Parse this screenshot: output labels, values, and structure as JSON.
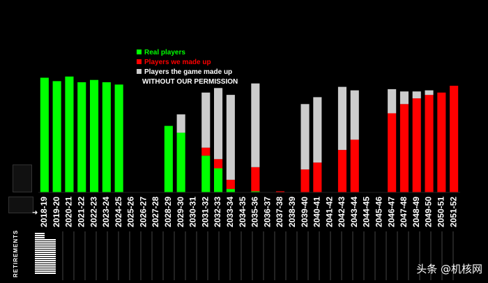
{
  "chart_data": {
    "type": "bar",
    "stacked": true,
    "categories": [
      "2018-19",
      "2019-20",
      "2020-21",
      "2021-22",
      "2022-23",
      "2023-24",
      "2024-25",
      "2025-26",
      "2026-27",
      "2027-28",
      "2028-29",
      "2029-30",
      "2030-31",
      "2031-32",
      "2032-33",
      "2033-34",
      "2034-35",
      "2035-36",
      "2036-37",
      "2037-38",
      "2038-39",
      "2039-40",
      "2040-41",
      "2041-42",
      "2042-43",
      "2043-44",
      "2044-45",
      "2045-46",
      "2046-47",
      "2047-48",
      "2048-49",
      "2049-50",
      "2050-51",
      "2051-52"
    ],
    "series": [
      {
        "name": "Real players",
        "color": "#00ff00",
        "values": [
          100,
          97,
          101,
          96,
          98,
          96,
          94,
          0,
          0,
          0,
          58,
          52,
          0,
          32,
          21,
          3,
          0,
          1,
          0,
          0,
          0,
          0,
          0,
          0,
          0,
          0,
          0,
          0,
          0,
          0,
          0,
          0,
          0,
          0
        ]
      },
      {
        "name": "Players we made up",
        "color": "#ff0000",
        "values": [
          0,
          0,
          0,
          0,
          0,
          0,
          0,
          0,
          0,
          0,
          0,
          0,
          0,
          7,
          8,
          8,
          0,
          21,
          0,
          1,
          0,
          20,
          26,
          0,
          37,
          46,
          0,
          0,
          69,
          77,
          82,
          85,
          87,
          93
        ]
      },
      {
        "name": "Players the game made up",
        "color": "#cccccc",
        "values": [
          0,
          0,
          0,
          0,
          0,
          0,
          0,
          0,
          0,
          0,
          0,
          16,
          0,
          48,
          62,
          74,
          0,
          73,
          0,
          0,
          0,
          57,
          57,
          0,
          55,
          43,
          0,
          0,
          21,
          11,
          6,
          4,
          0,
          0
        ]
      }
    ],
    "legend_note": "WITHOUT OUR PERMISSION",
    "ylim": [
      0,
      110
    ],
    "grid": false,
    "legend_position": "top-center"
  },
  "sidebar": {
    "retirements_label": "RETIREMENTS"
  },
  "watermark": "头条 @机核网"
}
